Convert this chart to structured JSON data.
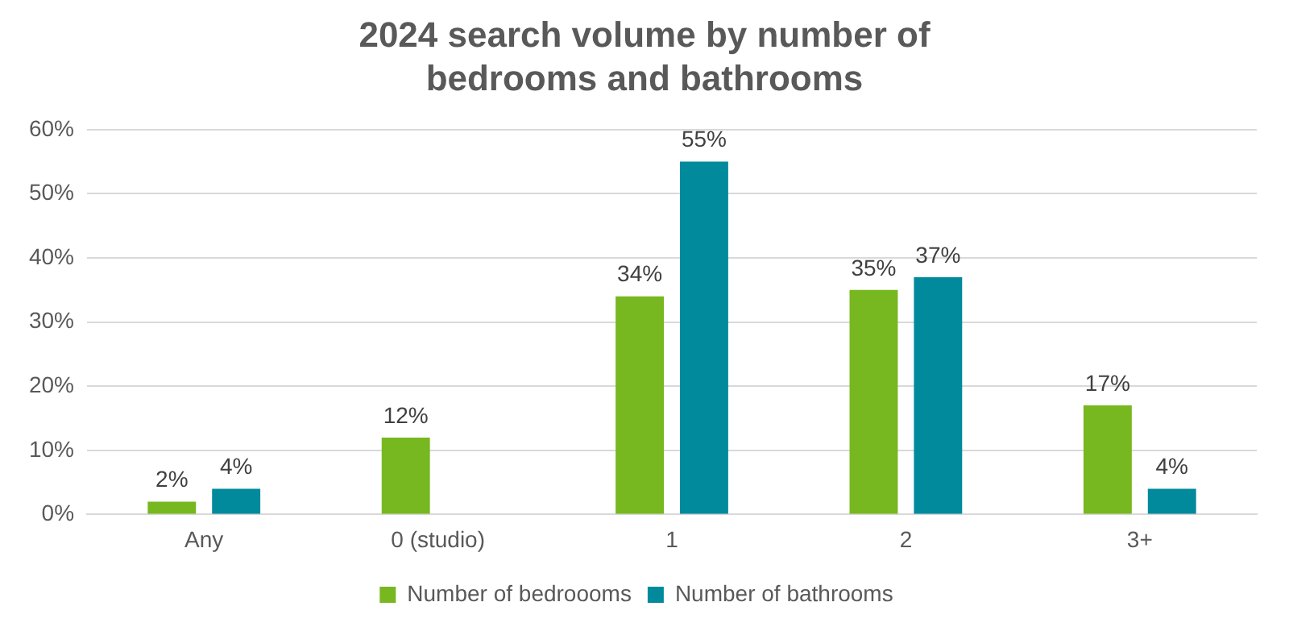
{
  "chart_data": {
    "type": "bar",
    "title": "2024 search volume by number of bedrooms and bathrooms",
    "categories": [
      "Any",
      "0 (studio)",
      "1",
      "2",
      "3+"
    ],
    "series": [
      {
        "name": "Number of bedroooms",
        "color": "#77b71f",
        "values": [
          2,
          12,
          34,
          35,
          17
        ],
        "value_labels": [
          "2%",
          "12%",
          "34%",
          "35%",
          "17%"
        ]
      },
      {
        "name": "Number of bathrooms",
        "color": "#008a9c",
        "values": [
          4,
          null,
          55,
          37,
          4
        ],
        "value_labels": [
          "4%",
          null,
          "55%",
          "37%",
          "4%"
        ]
      }
    ],
    "ylim": [
      0,
      60
    ],
    "yticks": [
      {
        "value": 0,
        "label": "0%"
      },
      {
        "value": 10,
        "label": "10%"
      },
      {
        "value": 20,
        "label": "20%"
      },
      {
        "value": 30,
        "label": "30%"
      },
      {
        "value": 40,
        "label": "40%"
      },
      {
        "value": 50,
        "label": "50%"
      },
      {
        "value": 60,
        "label": "60%"
      }
    ],
    "grid": "y",
    "legend": "bottom"
  }
}
